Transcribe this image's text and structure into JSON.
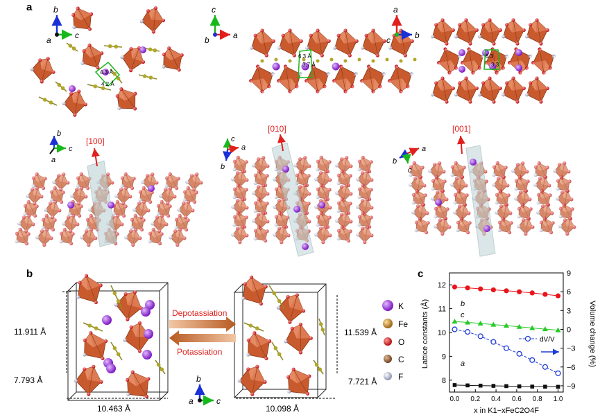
{
  "panels": {
    "a": "a",
    "b": "b",
    "c": "c"
  },
  "panel_a": {
    "top_row": [
      {
        "axes": {
          "up": "b",
          "right": "c",
          "origin": "a"
        },
        "distances": [
          "4.3 Å",
          "4.2 Å"
        ]
      },
      {
        "axes": {
          "up": "c",
          "right": "a",
          "origin": "b"
        },
        "distances": [
          "6.3 Å",
          "3.7 Å"
        ]
      },
      {
        "axes": {
          "up": "a",
          "right": "b",
          "origin": "c"
        },
        "distances": [
          "6.3",
          "3.3"
        ]
      }
    ],
    "bottom_row": [
      {
        "axes": {
          "up": "b",
          "right": "c",
          "down": "a"
        },
        "direction": "[100]"
      },
      {
        "axes": {
          "up": "c",
          "right": "a",
          "down": "b"
        },
        "direction": "[010]"
      },
      {
        "axes": {
          "right": "a",
          "left": "b",
          "down": "c"
        },
        "direction": "[001]"
      }
    ]
  },
  "panel_b": {
    "left_height": "11.911 Å",
    "left_depth": "7.793 Å",
    "left_width": "10.463 Å",
    "right_height": "11.539 Å",
    "right_depth": "7.721 Å",
    "right_width": "10.098 Å",
    "arrow_top_label": "Depotassiation",
    "arrow_bottom_label": "Potassiation",
    "axes": {
      "up": "b",
      "right": "c",
      "origin": "a"
    },
    "legend": [
      {
        "label": "K",
        "color": "#8e2bd1"
      },
      {
        "label": "Fe",
        "color": "#b07a1a"
      },
      {
        "label": "O",
        "color": "#d81d1d"
      },
      {
        "label": "C",
        "color": "#8b5a33"
      },
      {
        "label": "F",
        "color": "#b8bdd6"
      }
    ]
  },
  "chart_data": {
    "type": "scatter",
    "xlabel": "x in K1−xFeC2O4F",
    "ylabel_left": "Lattice constants (Å)",
    "ylabel_right": "Volume change (%)",
    "xlim": [
      -0.05,
      1.05
    ],
    "ylim_left": [
      7.5,
      12.5
    ],
    "ylim_right": [
      -10,
      9
    ],
    "x_ticks": [
      "0.0",
      "0.2",
      "0.4",
      "0.6",
      "0.8",
      "1.0"
    ],
    "y_left_ticks": [
      "8",
      "9",
      "10",
      "11",
      "12"
    ],
    "y_right_ticks": [
      "−9",
      "−6",
      "−3",
      "0",
      "3",
      "6",
      "9"
    ],
    "x": [
      0.0,
      0.125,
      0.25,
      0.375,
      0.5,
      0.625,
      0.75,
      0.875,
      1.0
    ],
    "series": [
      {
        "name": "b",
        "axis": "left",
        "color": "#e8151b",
        "marker": "circle",
        "values": [
          11.911,
          11.87,
          11.83,
          11.79,
          11.75,
          11.71,
          11.66,
          11.6,
          11.539
        ]
      },
      {
        "name": "c",
        "axis": "left",
        "color": "#27c926",
        "marker": "triangle",
        "values": [
          10.463,
          10.42,
          10.38,
          10.33,
          10.29,
          10.24,
          10.19,
          10.14,
          10.098
        ]
      },
      {
        "name": "a",
        "axis": "left",
        "color": "#111111",
        "marker": "square",
        "values": [
          7.793,
          7.78,
          7.77,
          7.76,
          7.75,
          7.74,
          7.73,
          7.725,
          7.721
        ]
      },
      {
        "name": "dV/V",
        "axis": "right",
        "color": "#1f3bd9",
        "marker": "open-circle",
        "values": [
          0,
          -0.4,
          -1.1,
          -2.0,
          -3.0,
          -3.9,
          -4.9,
          -6.0,
          -7.0
        ]
      }
    ]
  },
  "colors": {
    "octahedron": "#c85a2e",
    "octahedron_light": "#e49c7c",
    "oxygen": "#d81d1d",
    "carbon": "#9f9a20",
    "potassium": "#8e2bd1",
    "fluorine": "#d6d6dc",
    "iron": "#b35a10",
    "axis_a": "#111111",
    "axis_b": "#1a2fd6",
    "axis_c": "#17b81c",
    "dir_arrow": "#e0201c"
  }
}
